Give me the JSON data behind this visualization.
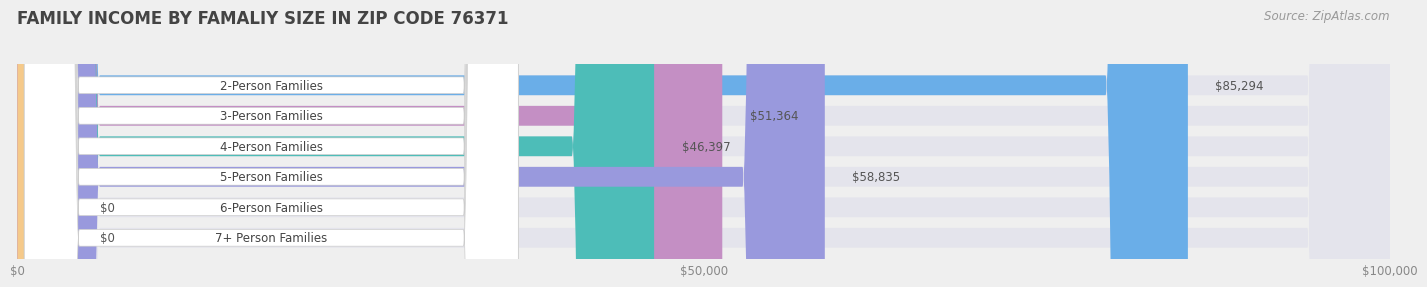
{
  "title": "FAMILY INCOME BY FAMALIY SIZE IN ZIP CODE 76371",
  "source": "Source: ZipAtlas.com",
  "categories": [
    "2-Person Families",
    "3-Person Families",
    "4-Person Families",
    "5-Person Families",
    "6-Person Families",
    "7+ Person Families"
  ],
  "values": [
    85294,
    51364,
    46397,
    58835,
    0,
    0
  ],
  "bar_colors": [
    "#6aaee8",
    "#c48fc4",
    "#4dbdb8",
    "#9999dd",
    "#f799aa",
    "#f5c98a"
  ],
  "bg_color": "#efefef",
  "bar_bg_color": "#e4e4ec",
  "title_color": "#444444",
  "source_color": "#999999",
  "xlim": [
    0,
    100000
  ],
  "xticks": [
    0,
    50000,
    100000
  ],
  "xtick_labels": [
    "$0",
    "$50,000",
    "$100,000"
  ],
  "value_labels": [
    "$85,294",
    "$51,364",
    "$46,397",
    "$58,835",
    "$0",
    "$0"
  ],
  "title_fontsize": 12,
  "source_fontsize": 8.5,
  "bar_label_fontsize": 8.5,
  "category_fontsize": 8.5,
  "tick_fontsize": 8.5
}
